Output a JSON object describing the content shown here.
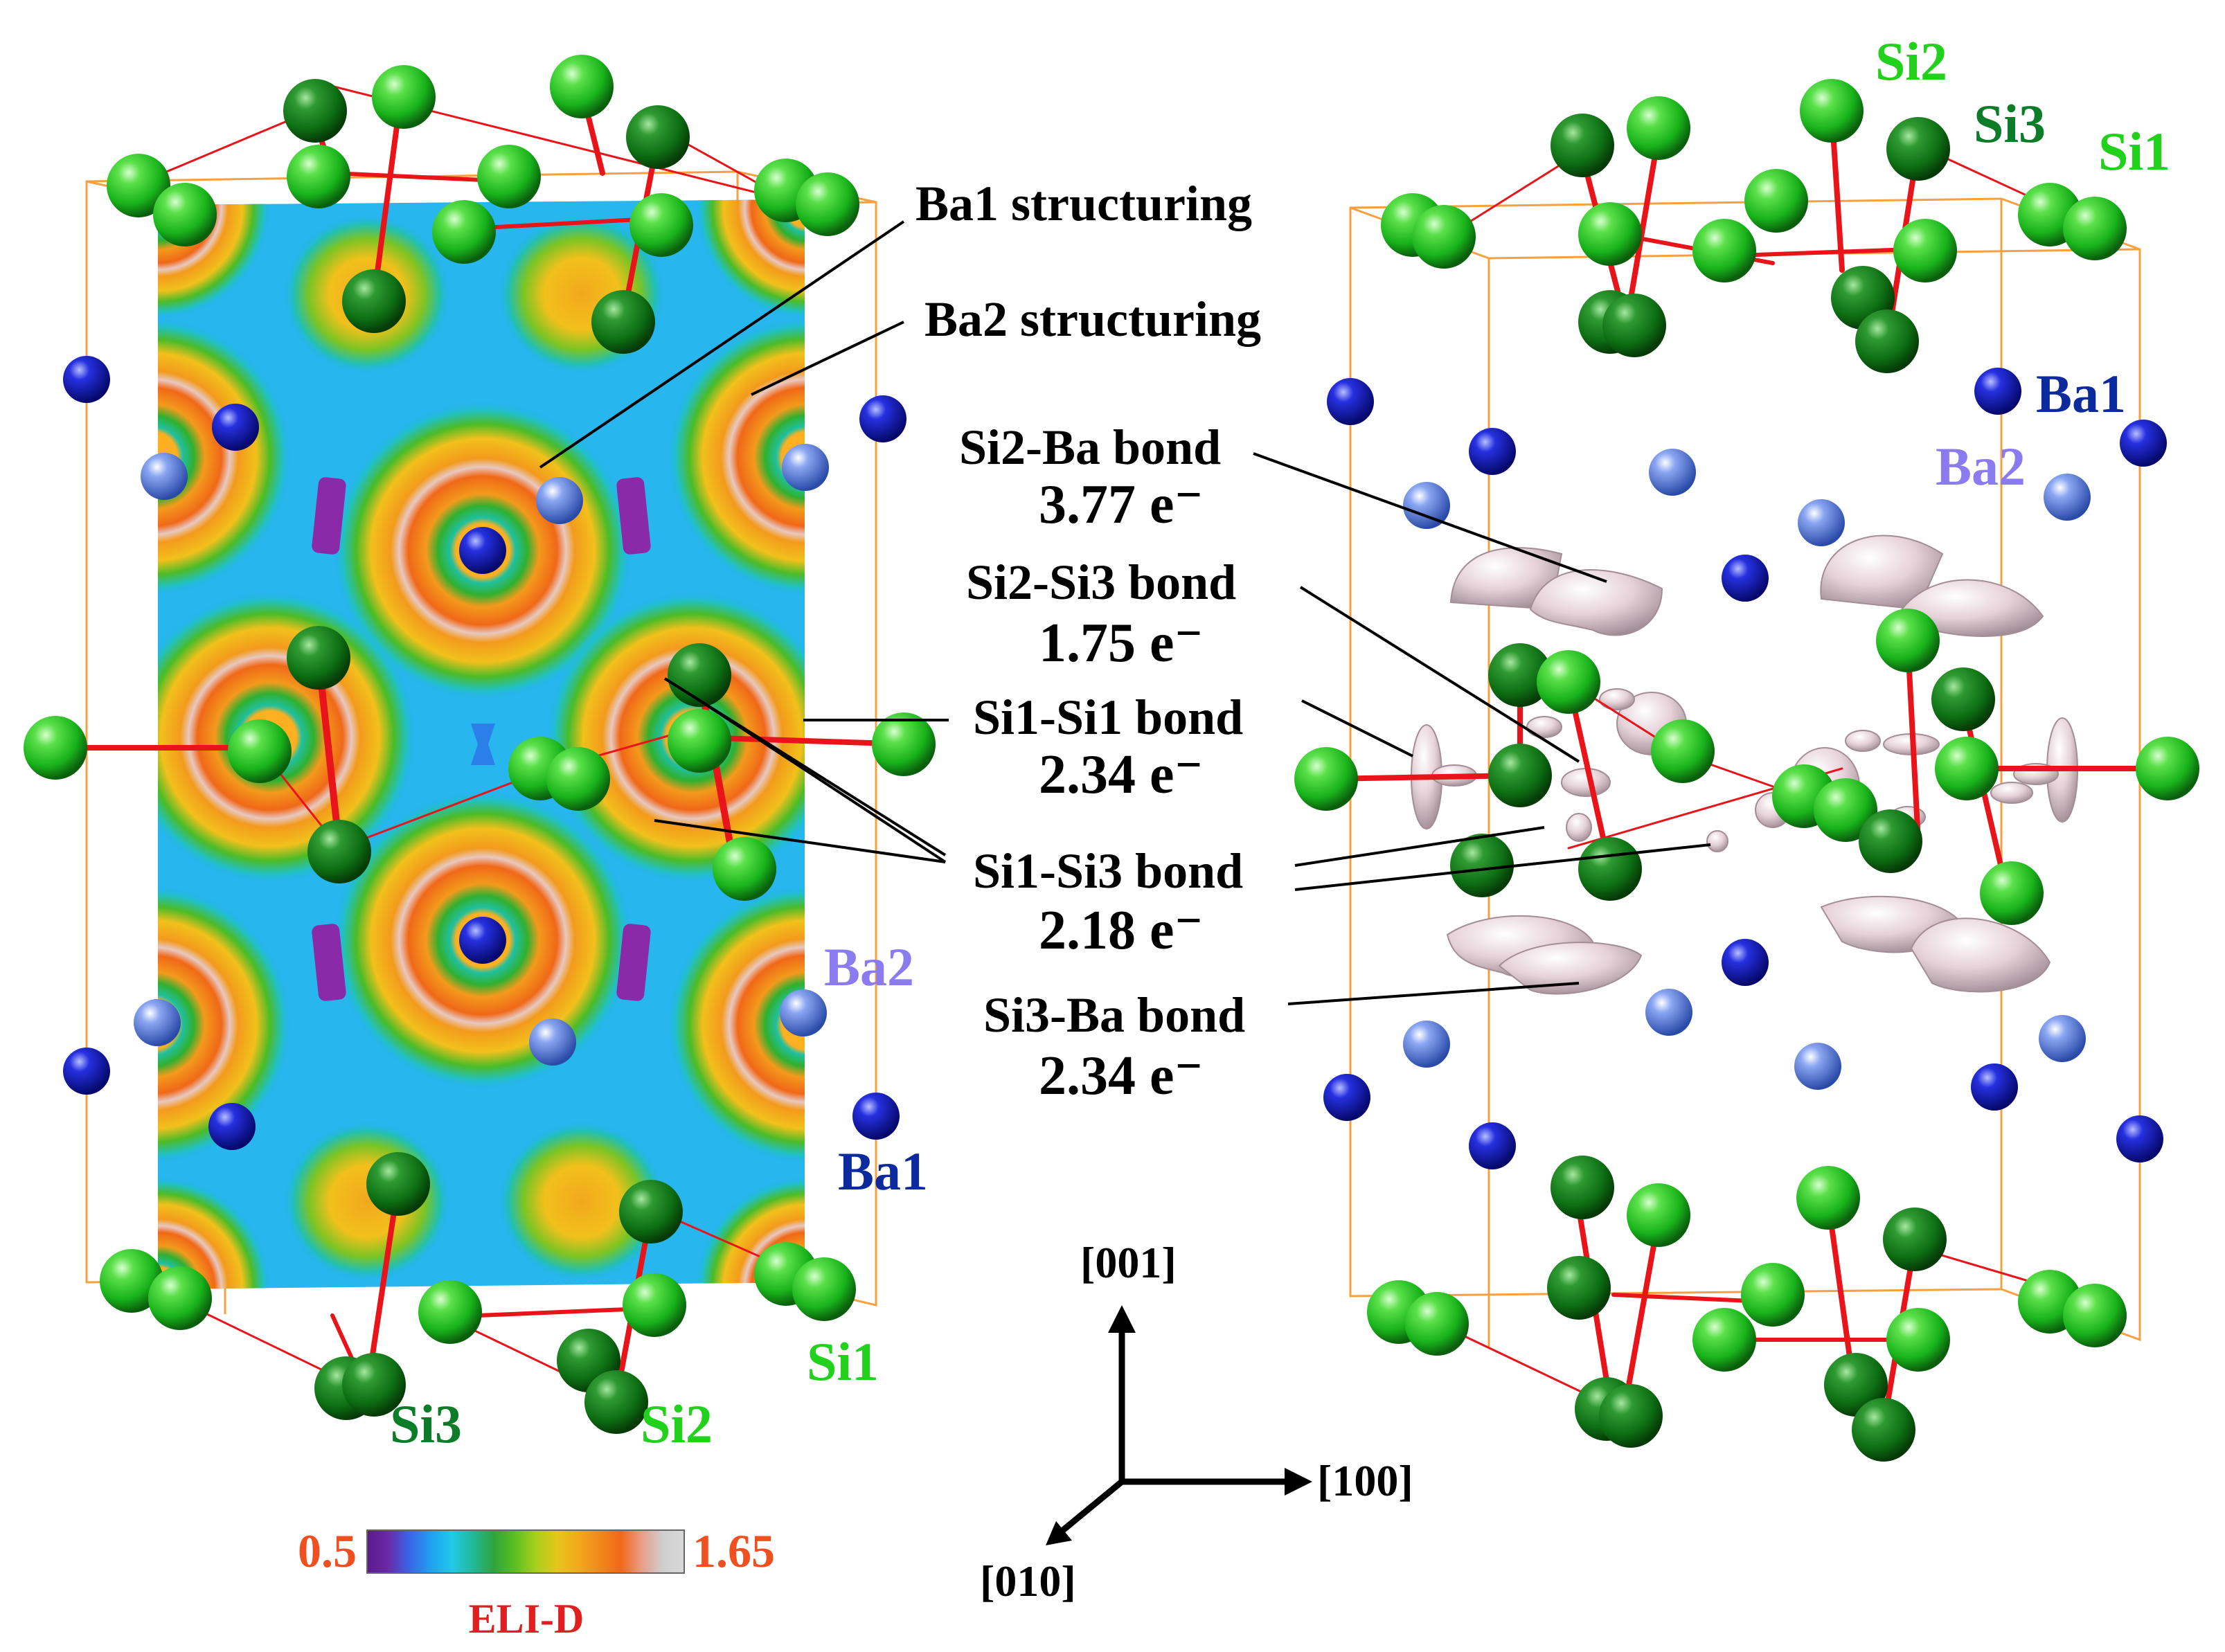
{
  "left_panel": {
    "atom_labels": {
      "ba2": "Ba2",
      "ba1": "Ba1",
      "si1": "Si1",
      "si3": "Si3",
      "si2": "Si2"
    },
    "colorbar": {
      "min_label": "0.5",
      "max_label": "1.65",
      "title": "ELI-D",
      "stops": [
        "#5b1a8c",
        "#6a2aa8",
        "#3a64e8",
        "#1fa0f0",
        "#22c8e8",
        "#21b99a",
        "#2ea43a",
        "#5cbf21",
        "#a9cf1c",
        "#e6c51c",
        "#f2a81d",
        "#f08a1c",
        "#f06818",
        "#e89e8a",
        "#cfcfcf",
        "#d9d9d9"
      ]
    }
  },
  "annotations": {
    "ba1_structuring": "Ba1 structuring",
    "ba2_structuring": "Ba2 structuring",
    "si2_ba": {
      "label": "Si2-Ba bond",
      "value": "3.77 e⁻"
    },
    "si2_si3": {
      "label": "Si2-Si3 bond",
      "value": "1.75 e⁻"
    },
    "si1_si1": {
      "label": "Si1-Si1 bond",
      "value": "2.34 e⁻"
    },
    "si1_si3": {
      "label": "Si1-Si3 bond",
      "value": "2.18 e⁻"
    },
    "si3_ba": {
      "label": "Si3-Ba bond",
      "value": "2.34 e⁻"
    }
  },
  "axes": {
    "z": "[001]",
    "x": "[100]",
    "y": "[010]"
  },
  "right_panel": {
    "atom_labels": {
      "si2": "Si2",
      "si3": "Si3",
      "si1": "Si1",
      "ba1": "Ba1",
      "ba2": "Ba2"
    }
  },
  "colors": {
    "si_light": "#19c41e",
    "si_dark": "#0a7a12",
    "ba1": "#0a10b8",
    "ba2": "#5b7fe0",
    "bond": "#e8141a",
    "cell": "#f7a040",
    "isosurface": "#e3cfd6",
    "label_blue_dark": "#0a2a9e",
    "label_blue_light": "#8a7cf0",
    "label_green_light": "#22d11c",
    "label_green_dark": "#0b7c28",
    "label_red": "#e02020"
  }
}
